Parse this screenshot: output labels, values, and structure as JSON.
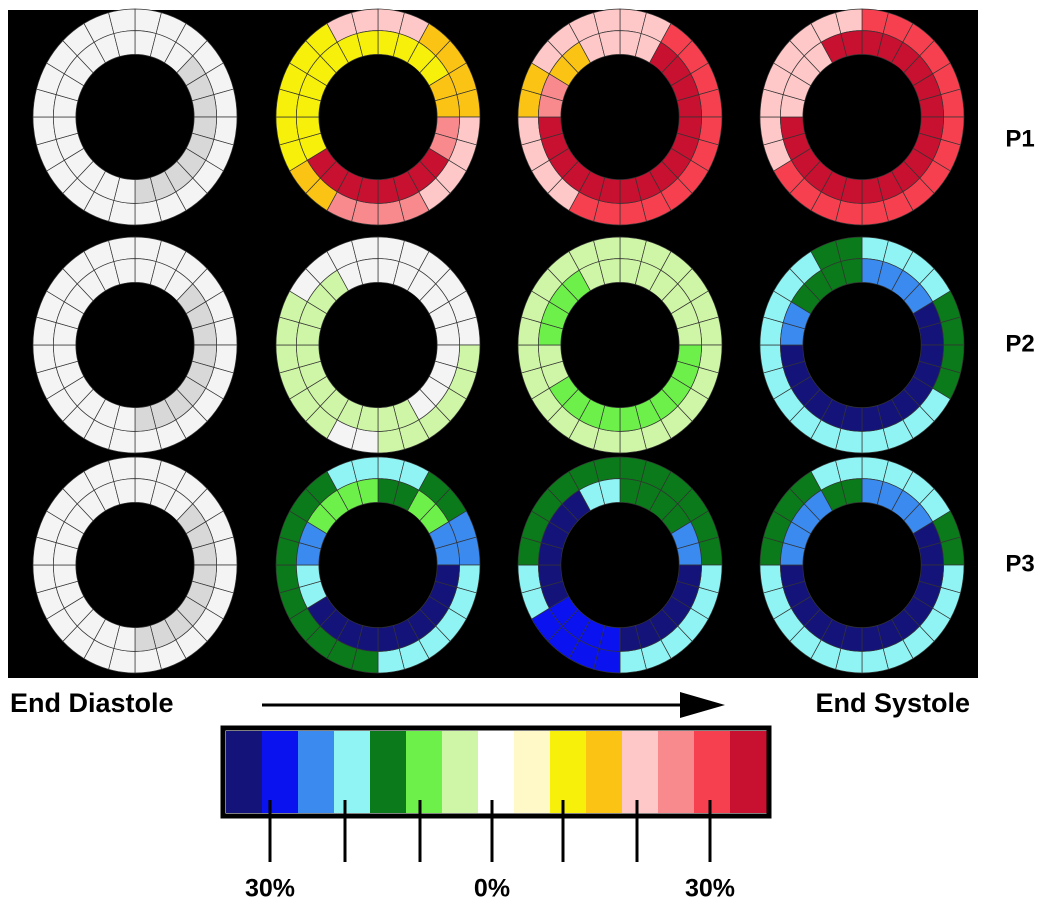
{
  "row_labels": [
    "P1",
    "P2",
    "P3"
  ],
  "timeline": {
    "start": "End Diastole",
    "end": "End Systole"
  },
  "color_scale": {
    "tick_labels": [
      "30%",
      "0%",
      "30%"
    ]
  }
}
